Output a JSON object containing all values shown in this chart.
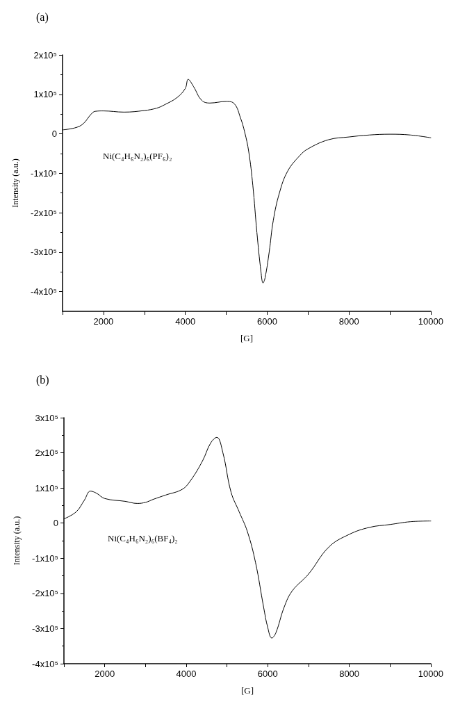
{
  "chart_data": [
    {
      "type": "line",
      "title": "(a)",
      "xlabel": "[G]",
      "ylabel": "Intensity (a.u.)",
      "annotations": [
        "Ni(C₄H₆N₂)₆(PF₆)₂"
      ],
      "x": [
        1000,
        1300,
        1500,
        1700,
        1800,
        2000,
        2500,
        3000,
        3300,
        3500,
        3800,
        4000,
        4070,
        4200,
        4400,
        4600,
        5000,
        5200,
        5350,
        5450,
        5550,
        5650,
        5750,
        5850,
        5900,
        5950,
        6050,
        6150,
        6300,
        6500,
        6800,
        7000,
        7500,
        8000,
        8500,
        9000,
        9500,
        10000
      ],
      "series": [
        {
          "color": "#000000",
          "values": [
            10000,
            15000,
            25000,
            50000,
            57000,
            58000,
            55000,
            59000,
            65000,
            74000,
            92000,
            115000,
            138000,
            120000,
            85000,
            78000,
            82000,
            76000,
            40000,
            5000,
            -45000,
            -130000,
            -250000,
            -350000,
            -378000,
            -365000,
            -300000,
            -220000,
            -150000,
            -95000,
            -55000,
            -38000,
            -15000,
            -8000,
            -3000,
            -1000,
            -3000,
            -10000
          ]
        }
      ],
      "xlim": [
        1000,
        10000
      ],
      "xticks": [
        {
          "value": 1000,
          "label": null
        },
        2000,
        {
          "value": 3000,
          "label": null
        },
        4000,
        {
          "value": 5000,
          "label": null
        },
        6000,
        {
          "value": 7000,
          "label": null
        },
        8000,
        {
          "value": 9000,
          "label": null
        },
        10000
      ],
      "ylim": [
        -450000,
        200000
      ],
      "yticks": [
        {
          "value": -400000,
          "label": "-4x10⁵"
        },
        {
          "value": -300000,
          "label": "-3x10⁵"
        },
        {
          "value": -200000,
          "label": "-2x10⁵"
        },
        {
          "value": -100000,
          "label": "-1x10⁵"
        },
        0,
        {
          "value": 100000,
          "label": "1x10⁵"
        },
        {
          "value": 200000,
          "label": "2x10⁵"
        }
      ],
      "grid": false,
      "marker": "none",
      "line_style": "solid"
    },
    {
      "type": "line",
      "title": "(b)",
      "xlabel": "[G]",
      "ylabel": "Intensity (a.u.)",
      "annotations": [
        "Ni(C₄H₆N₂)₆(BF₄)₂"
      ],
      "x": [
        1000,
        1300,
        1500,
        1650,
        1800,
        2000,
        2500,
        2800,
        3000,
        3200,
        3500,
        3900,
        4100,
        4400,
        4600,
        4750,
        4900,
        5100,
        5300,
        5500,
        5700,
        5900,
        6000,
        6100,
        6200,
        6400,
        6600,
        7000,
        7500,
        8000,
        8500,
        9000,
        9500,
        10000
      ],
      "series": [
        {
          "color": "#000000",
          "values": [
            12000,
            32000,
            65000,
            91000,
            85000,
            70000,
            62000,
            56000,
            59000,
            68000,
            80000,
            96000,
            120000,
            177000,
            228000,
            244000,
            200000,
            88000,
            32000,
            -24000,
            -112000,
            -240000,
            -297000,
            -327000,
            -312000,
            -240000,
            -193000,
            -145000,
            -68000,
            -32000,
            -12000,
            -4000,
            4000,
            6000
          ]
        }
      ],
      "xlim": [
        1000,
        10000
      ],
      "xticks": [
        {
          "value": 1000,
          "label": null
        },
        2000,
        {
          "value": 3000,
          "label": null
        },
        4000,
        {
          "value": 5000,
          "label": null
        },
        6000,
        {
          "value": 7000,
          "label": null
        },
        8000,
        {
          "value": 9000,
          "label": null
        },
        10000
      ],
      "ylim": [
        -400000,
        300000
      ],
      "yticks": [
        {
          "value": -400000,
          "label": "-4x10⁵"
        },
        {
          "value": -300000,
          "label": "-3x10⁵"
        },
        {
          "value": -200000,
          "label": "-2x10⁵"
        },
        {
          "value": -100000,
          "label": "-1x10⁵"
        },
        0,
        {
          "value": 100000,
          "label": "1x10⁵"
        },
        {
          "value": 200000,
          "label": "2x10⁵"
        },
        {
          "value": 300000,
          "label": "3x10⁵"
        }
      ],
      "grid": false,
      "marker": "none",
      "line_style": "solid"
    }
  ]
}
